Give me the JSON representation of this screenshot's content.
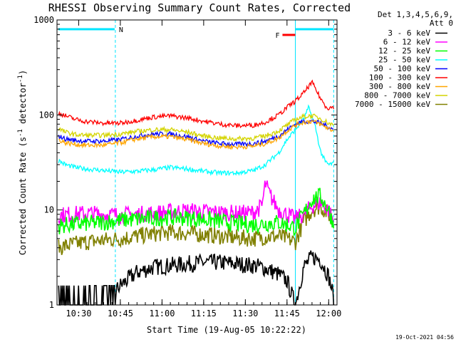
{
  "chart_data": {
    "type": "line",
    "title": "RHESSI Observing Summary Count Rates, Corrected",
    "xlabel": "Start Time (19-Aug-05 10:22:22)",
    "ylabel": "Corrected Count Rate (s",
    "ylabel_sup1": "-1",
    "ylabel_mid": " detector",
    "ylabel_sup2": "-1",
    "ylabel_end": ")",
    "y_scale": "log",
    "ylim": [
      1,
      1000
    ],
    "xlim_minutes": [
      10.37,
      12.05
    ],
    "x_ticks": [
      {
        "t": 10.5,
        "label": "10:30"
      },
      {
        "t": 10.75,
        "label": "10:45"
      },
      {
        "t": 11.0,
        "label": "11:00"
      },
      {
        "t": 11.25,
        "label": "11:15"
      },
      {
        "t": 11.5,
        "label": "11:30"
      },
      {
        "t": 11.75,
        "label": "11:45"
      },
      {
        "t": 12.0,
        "label": "12:00"
      }
    ],
    "y_ticks": [
      {
        "v": 1,
        "label": "1"
      },
      {
        "v": 10,
        "label": "10"
      },
      {
        "v": 100,
        "label": "100"
      },
      {
        "v": 1000,
        "label": "1000"
      }
    ],
    "legend_header": [
      "Det 1,3,4,5,6,9,",
      "Att 0"
    ],
    "legend_position": "right",
    "annotations": [
      {
        "label": "N",
        "color": "#00e5ff"
      },
      {
        "label": "F",
        "color": "#ff0000"
      }
    ],
    "night_boundaries": [
      10.72,
      11.8,
      12.03
    ],
    "series": [
      {
        "name": "3 - 6 keV",
        "color": "#000000",
        "t": [
          10.38,
          10.45,
          10.55,
          10.65,
          10.75,
          10.85,
          10.95,
          11.05,
          11.15,
          11.25,
          11.35,
          11.45,
          11.55,
          11.6,
          11.65,
          11.7,
          11.75,
          11.8,
          11.85,
          11.9,
          11.95,
          12.0,
          12.03
        ],
        "v": [
          1.0,
          1.0,
          1.0,
          1.0,
          1.6,
          2.2,
          2.5,
          2.6,
          2.7,
          2.8,
          2.8,
          2.7,
          2.6,
          2.5,
          2.3,
          2.1,
          1.8,
          1.0,
          2.5,
          3.2,
          3.0,
          2.0,
          1.2
        ]
      },
      {
        "name": "6 - 12 keV",
        "color": "#ff00ff",
        "t": [
          10.38,
          10.45,
          10.55,
          10.65,
          10.75,
          10.85,
          10.95,
          11.05,
          11.15,
          11.25,
          11.35,
          11.45,
          11.55,
          11.6,
          11.62,
          11.65,
          11.7,
          11.75,
          11.8,
          11.85,
          11.9,
          11.95,
          12.0,
          12.03
        ],
        "v": [
          8.8,
          9.0,
          9.2,
          9.0,
          8.8,
          9.0,
          9.2,
          9.6,
          9.8,
          9.6,
          9.4,
          9.2,
          9.4,
          11.0,
          19.0,
          14.0,
          10.0,
          9.0,
          8.0,
          9.0,
          11.0,
          12.0,
          10.0,
          7.5
        ]
      },
      {
        "name": "12 - 25 keV",
        "color": "#00ff00",
        "t": [
          10.38,
          10.45,
          10.55,
          10.65,
          10.75,
          10.85,
          10.95,
          11.05,
          11.15,
          11.25,
          11.35,
          11.45,
          11.55,
          11.62,
          11.7,
          11.75,
          11.8,
          11.85,
          11.9,
          11.95,
          12.0,
          12.03
        ],
        "v": [
          6.8,
          7.0,
          7.2,
          7.4,
          7.8,
          8.0,
          8.2,
          8.4,
          8.2,
          8.0,
          7.6,
          7.2,
          7.0,
          7.2,
          7.4,
          7.0,
          6.5,
          9.0,
          13.0,
          14.0,
          10.0,
          7.0
        ]
      },
      {
        "name": "25 - 50 keV",
        "color": "#00ffff",
        "t": [
          10.38,
          10.42,
          10.48,
          10.55,
          10.65,
          10.75,
          10.85,
          10.95,
          11.05,
          11.15,
          11.25,
          11.35,
          11.45,
          11.55,
          11.62,
          11.7,
          11.75,
          11.8,
          11.85,
          11.88,
          11.92,
          11.95,
          11.98,
          12.0,
          12.03
        ],
        "v": [
          33,
          30,
          28,
          27,
          26,
          25,
          25.5,
          26.5,
          28,
          27,
          25.5,
          24.5,
          24.5,
          26,
          30,
          40,
          55,
          70,
          90,
          120,
          75,
          42,
          32,
          30,
          31
        ]
      },
      {
        "name": "50 - 100 keV",
        "color": "#0000ff",
        "t": [
          10.38,
          10.42,
          10.48,
          10.55,
          10.65,
          10.75,
          10.85,
          10.95,
          11.05,
          11.15,
          11.25,
          11.35,
          11.45,
          11.55,
          11.62,
          11.7,
          11.75,
          11.8,
          11.85,
          11.9,
          11.95,
          12.0,
          12.03
        ],
        "v": [
          60,
          56,
          54,
          53,
          53,
          55,
          60,
          63,
          63,
          59,
          53,
          50,
          49,
          50,
          53,
          60,
          70,
          80,
          86,
          86,
          82,
          75,
          70
        ]
      },
      {
        "name": "100 - 300 keV",
        "color": "#ff0000",
        "t": [
          10.38,
          10.42,
          10.48,
          10.55,
          10.65,
          10.75,
          10.85,
          10.95,
          11.05,
          11.15,
          11.25,
          11.35,
          11.45,
          11.55,
          11.62,
          11.7,
          11.75,
          11.8,
          11.85,
          11.88,
          11.9,
          11.92,
          11.95,
          11.98,
          12.0,
          12.03
        ],
        "v": [
          105,
          98,
          90,
          85,
          82,
          82,
          88,
          95,
          98,
          93,
          86,
          80,
          77,
          78,
          84,
          100,
          120,
          140,
          170,
          200,
          220,
          190,
          150,
          125,
          118,
          122
        ]
      },
      {
        "name": "300 - 800 keV",
        "color": "#ffa500",
        "t": [
          10.38,
          10.42,
          10.48,
          10.55,
          10.65,
          10.75,
          10.85,
          10.95,
          11.05,
          11.15,
          11.25,
          11.35,
          11.45,
          11.55,
          11.62,
          11.7,
          11.75,
          11.8,
          11.85,
          11.9,
          11.95,
          12.0,
          12.03
        ],
        "v": [
          55,
          51,
          49,
          48,
          48,
          51,
          56,
          59,
          59,
          55,
          50,
          47,
          46,
          47,
          50,
          57,
          68,
          78,
          84,
          86,
          80,
          72,
          68
        ]
      },
      {
        "name": "800 - 7000 keV",
        "color": "#d4d400",
        "t": [
          10.38,
          10.42,
          10.48,
          10.55,
          10.65,
          10.75,
          10.85,
          10.95,
          11.05,
          11.15,
          11.25,
          11.35,
          11.45,
          11.55,
          11.62,
          11.7,
          11.75,
          11.8,
          11.85,
          11.9,
          11.95,
          12.0,
          12.03
        ],
        "v": [
          72,
          66,
          62,
          61,
          61,
          63,
          67,
          70,
          70,
          66,
          60,
          57,
          56,
          57,
          60,
          68,
          78,
          90,
          96,
          98,
          92,
          82,
          78
        ]
      },
      {
        "name": "7000 - 15000 keV",
        "color": "#808000",
        "t": [
          10.38,
          10.45,
          10.55,
          10.65,
          10.75,
          10.85,
          10.95,
          11.05,
          11.15,
          11.25,
          11.35,
          11.45,
          11.55,
          11.62,
          11.7,
          11.75,
          11.8,
          11.85,
          11.9,
          11.95,
          12.0,
          12.03
        ],
        "v": [
          4.0,
          4.3,
          4.6,
          4.8,
          5.0,
          5.3,
          5.6,
          5.8,
          5.7,
          5.5,
          5.3,
          5.1,
          5.0,
          5.2,
          5.3,
          5.0,
          4.6,
          7.5,
          10.0,
          11.0,
          9.0,
          7.0
        ]
      }
    ]
  },
  "footer_stamp": "19-Oct-2021 04:56"
}
